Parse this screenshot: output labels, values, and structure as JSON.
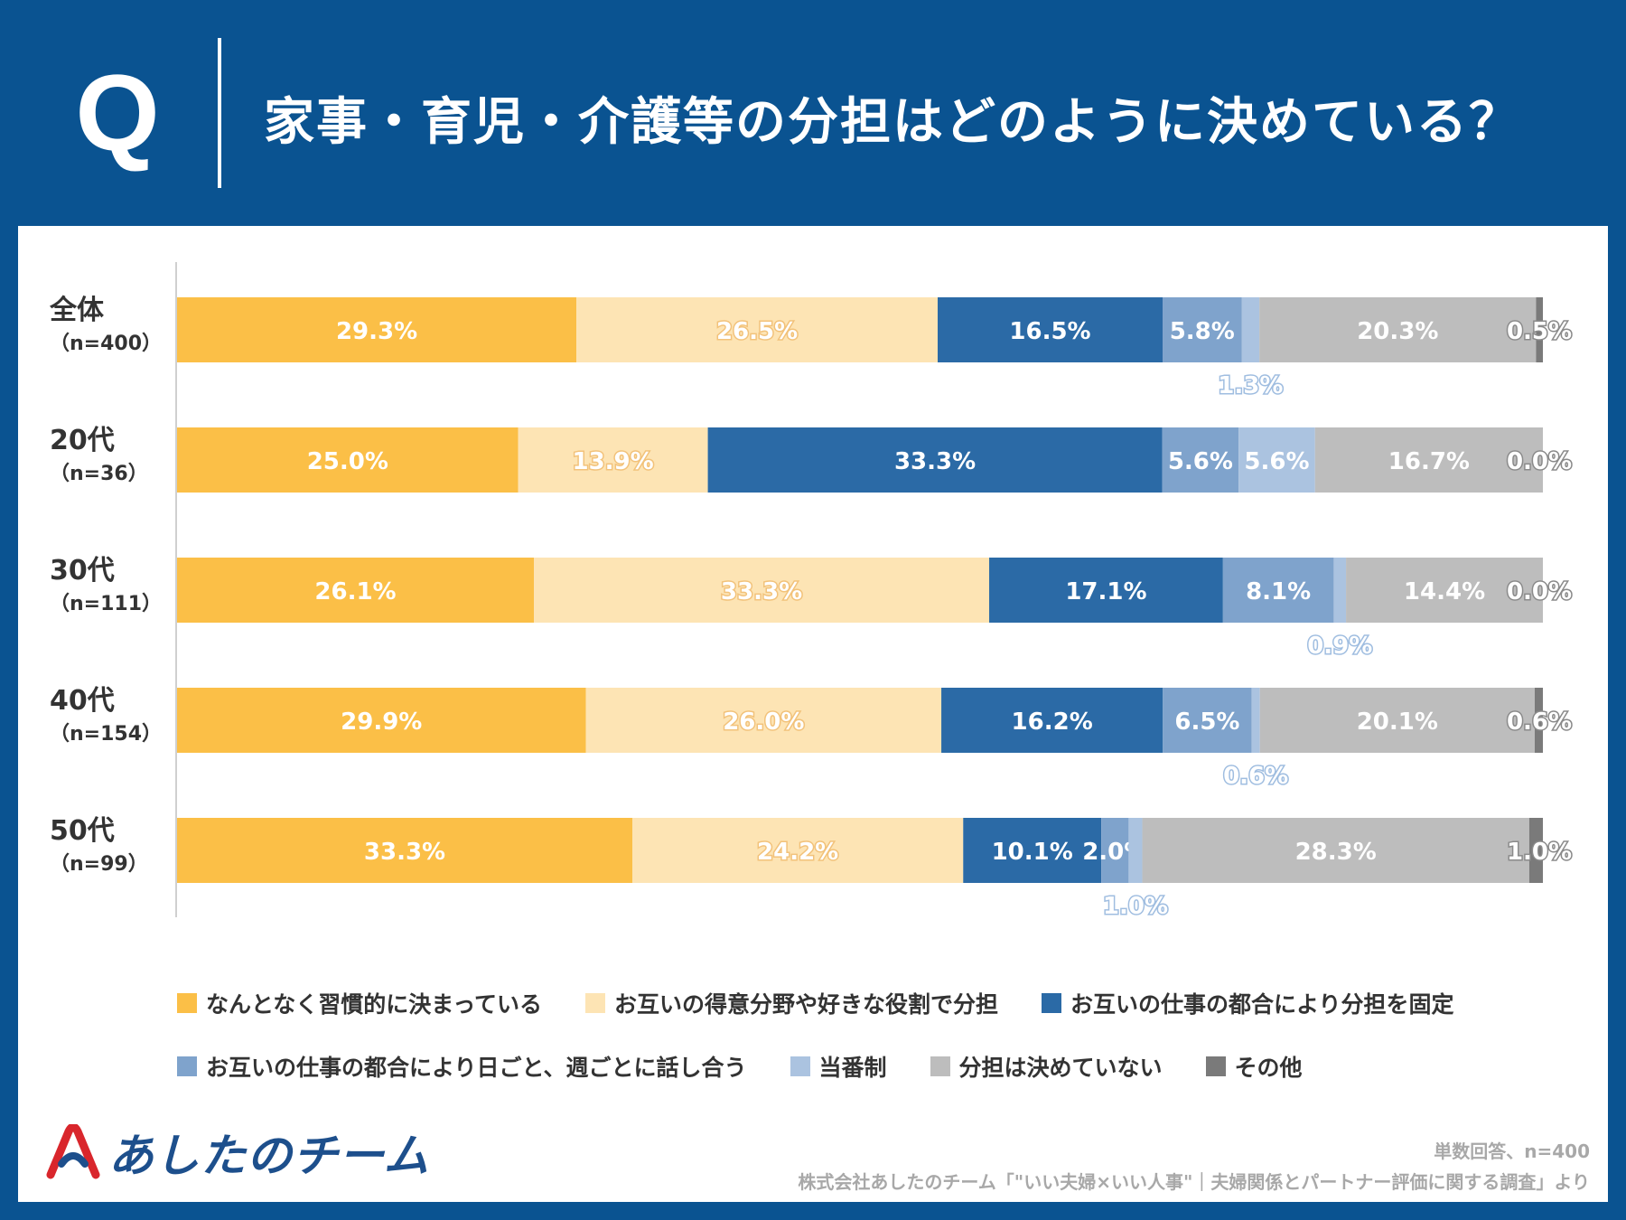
{
  "header": {
    "q_letter": "Q",
    "title": "家事・育児・介護等の分担はどのように決めている？"
  },
  "colors": {
    "header_bg": "#0a5391",
    "series": [
      "#fbbf47",
      "#fde4b4",
      "#2b6aa6",
      "#7fa3cc",
      "#abc3e0",
      "#bdbdbd",
      "#7a7a7a"
    ]
  },
  "rows": [
    {
      "group": "全体",
      "n": "（n=400）"
    },
    {
      "group": "20代",
      "n": "（n=36）"
    },
    {
      "group": "30代",
      "n": "（n=111）"
    },
    {
      "group": "40代",
      "n": "（n=154）"
    },
    {
      "group": "50代",
      "n": "（n=99）"
    }
  ],
  "chart_data": {
    "type": "bar",
    "orientation": "horizontal",
    "stacked": true,
    "normalized": true,
    "title": "家事・育児・介護等の分担はどのように決めている？",
    "categories": [
      "全体（n=400）",
      "20代（n=36）",
      "30代（n=111）",
      "40代（n=154）",
      "50代（n=99）"
    ],
    "unit": "%",
    "series": [
      {
        "name": "なんとなく習慣的に決まっている",
        "values": [
          29.3,
          25.0,
          26.1,
          29.9,
          33.3
        ],
        "labels": [
          "29.3%",
          "25.0%",
          "26.1%",
          "29.9%",
          "33.3%"
        ]
      },
      {
        "name": "お互いの得意分野や好きな役割で分担",
        "values": [
          26.5,
          13.9,
          33.3,
          26.0,
          24.2
        ],
        "labels": [
          "26.5%",
          "13.9%",
          "33.3%",
          "26.0%",
          "24.2%"
        ]
      },
      {
        "name": "お互いの仕事の都合により分担を固定",
        "values": [
          16.5,
          33.3,
          17.1,
          16.2,
          10.1
        ],
        "labels": [
          "16.5%",
          "33.3%",
          "17.1%",
          "16.2%",
          "10.1%"
        ]
      },
      {
        "name": "お互いの仕事の都合により日ごと、週ごとに話し合う",
        "values": [
          5.8,
          5.6,
          8.1,
          6.5,
          2.0
        ],
        "labels": [
          "5.8%",
          "5.6%",
          "8.1%",
          "6.5%",
          "2.0%"
        ]
      },
      {
        "name": "当番制",
        "values": [
          1.3,
          5.6,
          0.9,
          0.6,
          1.0
        ],
        "labels": [
          "1.3%",
          "5.6%",
          "0.9%",
          "0.6%",
          "1.0%"
        ]
      },
      {
        "name": "分担は決めていない",
        "values": [
          20.3,
          16.7,
          14.4,
          20.1,
          28.3
        ],
        "labels": [
          "20.3%",
          "16.7%",
          "14.4%",
          "20.1%",
          "28.3%"
        ]
      },
      {
        "name": "その他",
        "values": [
          0.5,
          0.0,
          0.0,
          0.6,
          1.0
        ],
        "labels": [
          "0.5%",
          "0.0%",
          "0.0%",
          "0.6%",
          "1.0%"
        ]
      }
    ],
    "xlim": [
      0,
      100
    ],
    "legend_position": "bottom"
  },
  "footer": {
    "logo_text": "あしたのチーム",
    "note": "単数回答、n=400",
    "source": "株式会社あしたのチーム「\"いい夫婦×いい人事\"｜夫婦関係とパートナー評価に関する調査」より"
  }
}
